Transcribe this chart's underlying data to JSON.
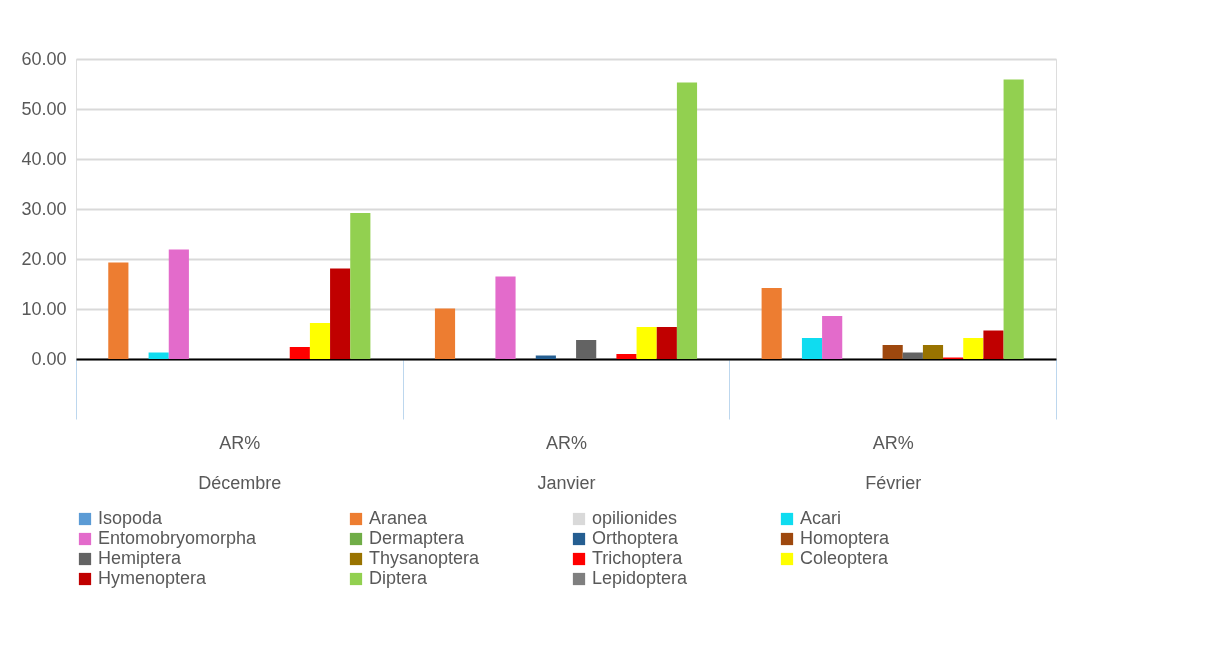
{
  "chart_data": {
    "type": "bar",
    "categories": [
      "AR%\nDécembre",
      "AR%\nJanvier",
      "AR%\nFévrier"
    ],
    "ylim": [
      0,
      60
    ],
    "yticks": [
      {
        "value": 0,
        "label": "0.00"
      },
      {
        "value": 10,
        "label": "10.00"
      },
      {
        "value": 20,
        "label": "20.00"
      },
      {
        "value": 30,
        "label": "30.00"
      },
      {
        "value": 40,
        "label": "40.00"
      },
      {
        "value": 50,
        "label": "50.00"
      },
      {
        "value": 60,
        "label": "60.00"
      }
    ],
    "grid": "y",
    "legend": "bottom",
    "series": [
      {
        "name": "Isopoda",
        "color": "#5b9bd5",
        "values": [
          0,
          0,
          0
        ]
      },
      {
        "name": "Aranea",
        "color": "#ed7d31",
        "values": [
          19.3,
          10.1,
          14.2
        ]
      },
      {
        "name": "opilionides",
        "color": "#d9d9d9",
        "values": [
          0,
          0,
          0
        ]
      },
      {
        "name": "Acari",
        "color": "#0fdcf0",
        "values": [
          1.3,
          0,
          4.2
        ]
      },
      {
        "name": "Entomobryomorpha",
        "color": "#e36bcb",
        "values": [
          21.9,
          16.5,
          8.6
        ]
      },
      {
        "name": "Dermaptera",
        "color": "#70ad47",
        "values": [
          0,
          0,
          0
        ]
      },
      {
        "name": "Orthoptera",
        "color": "#255e91",
        "values": [
          0,
          0.7,
          0
        ]
      },
      {
        "name": "Homoptera",
        "color": "#9e480e",
        "values": [
          0,
          0,
          2.8
        ]
      },
      {
        "name": "Hemiptera",
        "color": "#636363",
        "values": [
          0,
          3.8,
          1.3
        ]
      },
      {
        "name": "Thysanoptera",
        "color": "#997300",
        "values": [
          0,
          0,
          2.8
        ]
      },
      {
        "name": "Trichoptera",
        "color": "#ff0000",
        "values": [
          2.4,
          1.0,
          0.3
        ]
      },
      {
        "name": "Coleoptera",
        "color": "#ffff00",
        "values": [
          7.2,
          6.4,
          4.2
        ]
      },
      {
        "name": "Hymenoptera",
        "color": "#c00000",
        "values": [
          18.1,
          6.4,
          5.7
        ]
      },
      {
        "name": "Diptera",
        "color": "#92d050",
        "values": [
          29.2,
          55.3,
          55.9
        ]
      },
      {
        "name": "Lepidoptera",
        "color": "#7f7f7f",
        "values": [
          0,
          0,
          0
        ]
      }
    ]
  }
}
